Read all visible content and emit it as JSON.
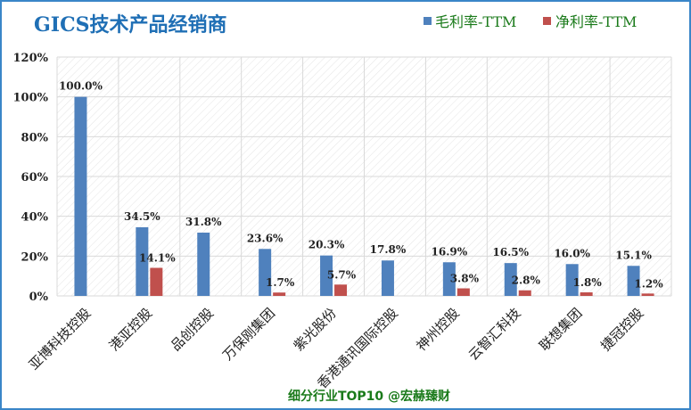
{
  "colors": {
    "frame": "#3a86c8",
    "title": "#1f6fb5",
    "legend_text": "#1a7a1a",
    "footer": "#1a7a1a",
    "gross": "#4f81bd",
    "net": "#c0504d",
    "grid": "#d9d9d9",
    "plot_hatch": "#e6e6e6",
    "axis_text": "#222222"
  },
  "chart_data": {
    "type": "bar",
    "title": "GICS技术产品经销商",
    "categories": [
      "亚博科技控股",
      "港亚控股",
      "品创控股",
      "万保刚集团",
      "紫光股份",
      "香港通讯国际控股",
      "神州控股",
      "云智汇科技",
      "联想集团",
      "捷冠控股"
    ],
    "series": [
      {
        "name": "毛利率-TTM",
        "values": [
          100.0,
          34.5,
          31.8,
          23.6,
          20.3,
          17.8,
          16.9,
          16.5,
          16.0,
          15.1
        ],
        "labels": [
          "100.0%",
          "34.5%",
          "31.8%",
          "23.6%",
          "20.3%",
          "17.8%",
          "16.9%",
          "16.5%",
          "16.0%",
          "15.1%"
        ]
      },
      {
        "name": "净利率-TTM",
        "values": [
          null,
          14.1,
          null,
          1.7,
          5.7,
          null,
          3.8,
          2.8,
          1.8,
          1.2
        ],
        "labels": [
          "",
          "14.1%",
          "",
          "1.7%",
          "5.7%",
          "",
          "3.8%",
          "2.8%",
          "1.8%",
          "1.2%"
        ]
      }
    ],
    "ylim": [
      0,
      120
    ],
    "yticks": [
      "0%",
      "20%",
      "40%",
      "60%",
      "80%",
      "100%",
      "120%"
    ],
    "ytick_values": [
      0,
      20,
      40,
      60,
      80,
      100,
      120
    ],
    "grid": true,
    "legend_position": "top-right"
  },
  "footer": "细分行业TOP10 @宏赫臻财"
}
